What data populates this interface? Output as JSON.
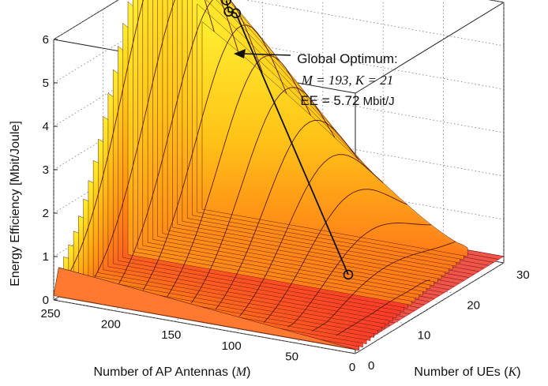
{
  "chart_data": {
    "type": "surface",
    "xlabel": "Number of AP Antennas",
    "xlabel_symbol": "M",
    "ylabel": "Number of UEs",
    "ylabel_symbol": "K",
    "zlabel": "Energy Efficiency [Mbit/Joule]",
    "x_ticks": [
      "250",
      "200",
      "150",
      "100",
      "50",
      "0"
    ],
    "y_ticks": [
      "0",
      "10",
      "20",
      "30"
    ],
    "z_ticks": [
      "0",
      "1",
      "2",
      "3",
      "4",
      "5",
      "6"
    ],
    "xlim": [
      0,
      250
    ],
    "ylim": [
      0,
      30
    ],
    "zlim": [
      0,
      6
    ],
    "grid": true,
    "surface_colormap": "autumn",
    "optimum": {
      "M": 193,
      "K": 21,
      "EE": 5.72
    },
    "annotation": {
      "line1": "Global Optimum:",
      "line2": "M = 193, K = 21",
      "line3_prefix": "EE = ",
      "line3_value": "5.72",
      "line3_unit": " Mbit/J"
    },
    "path_points": [
      {
        "M": 193,
        "K": 21,
        "EE": 5.72
      },
      {
        "M": 187,
        "K": 20,
        "EE": 5.56
      },
      {
        "M": 181,
        "K": 20,
        "EE": 5.55
      },
      {
        "M": 10,
        "K": 1,
        "EE": 1.7
      }
    ]
  }
}
